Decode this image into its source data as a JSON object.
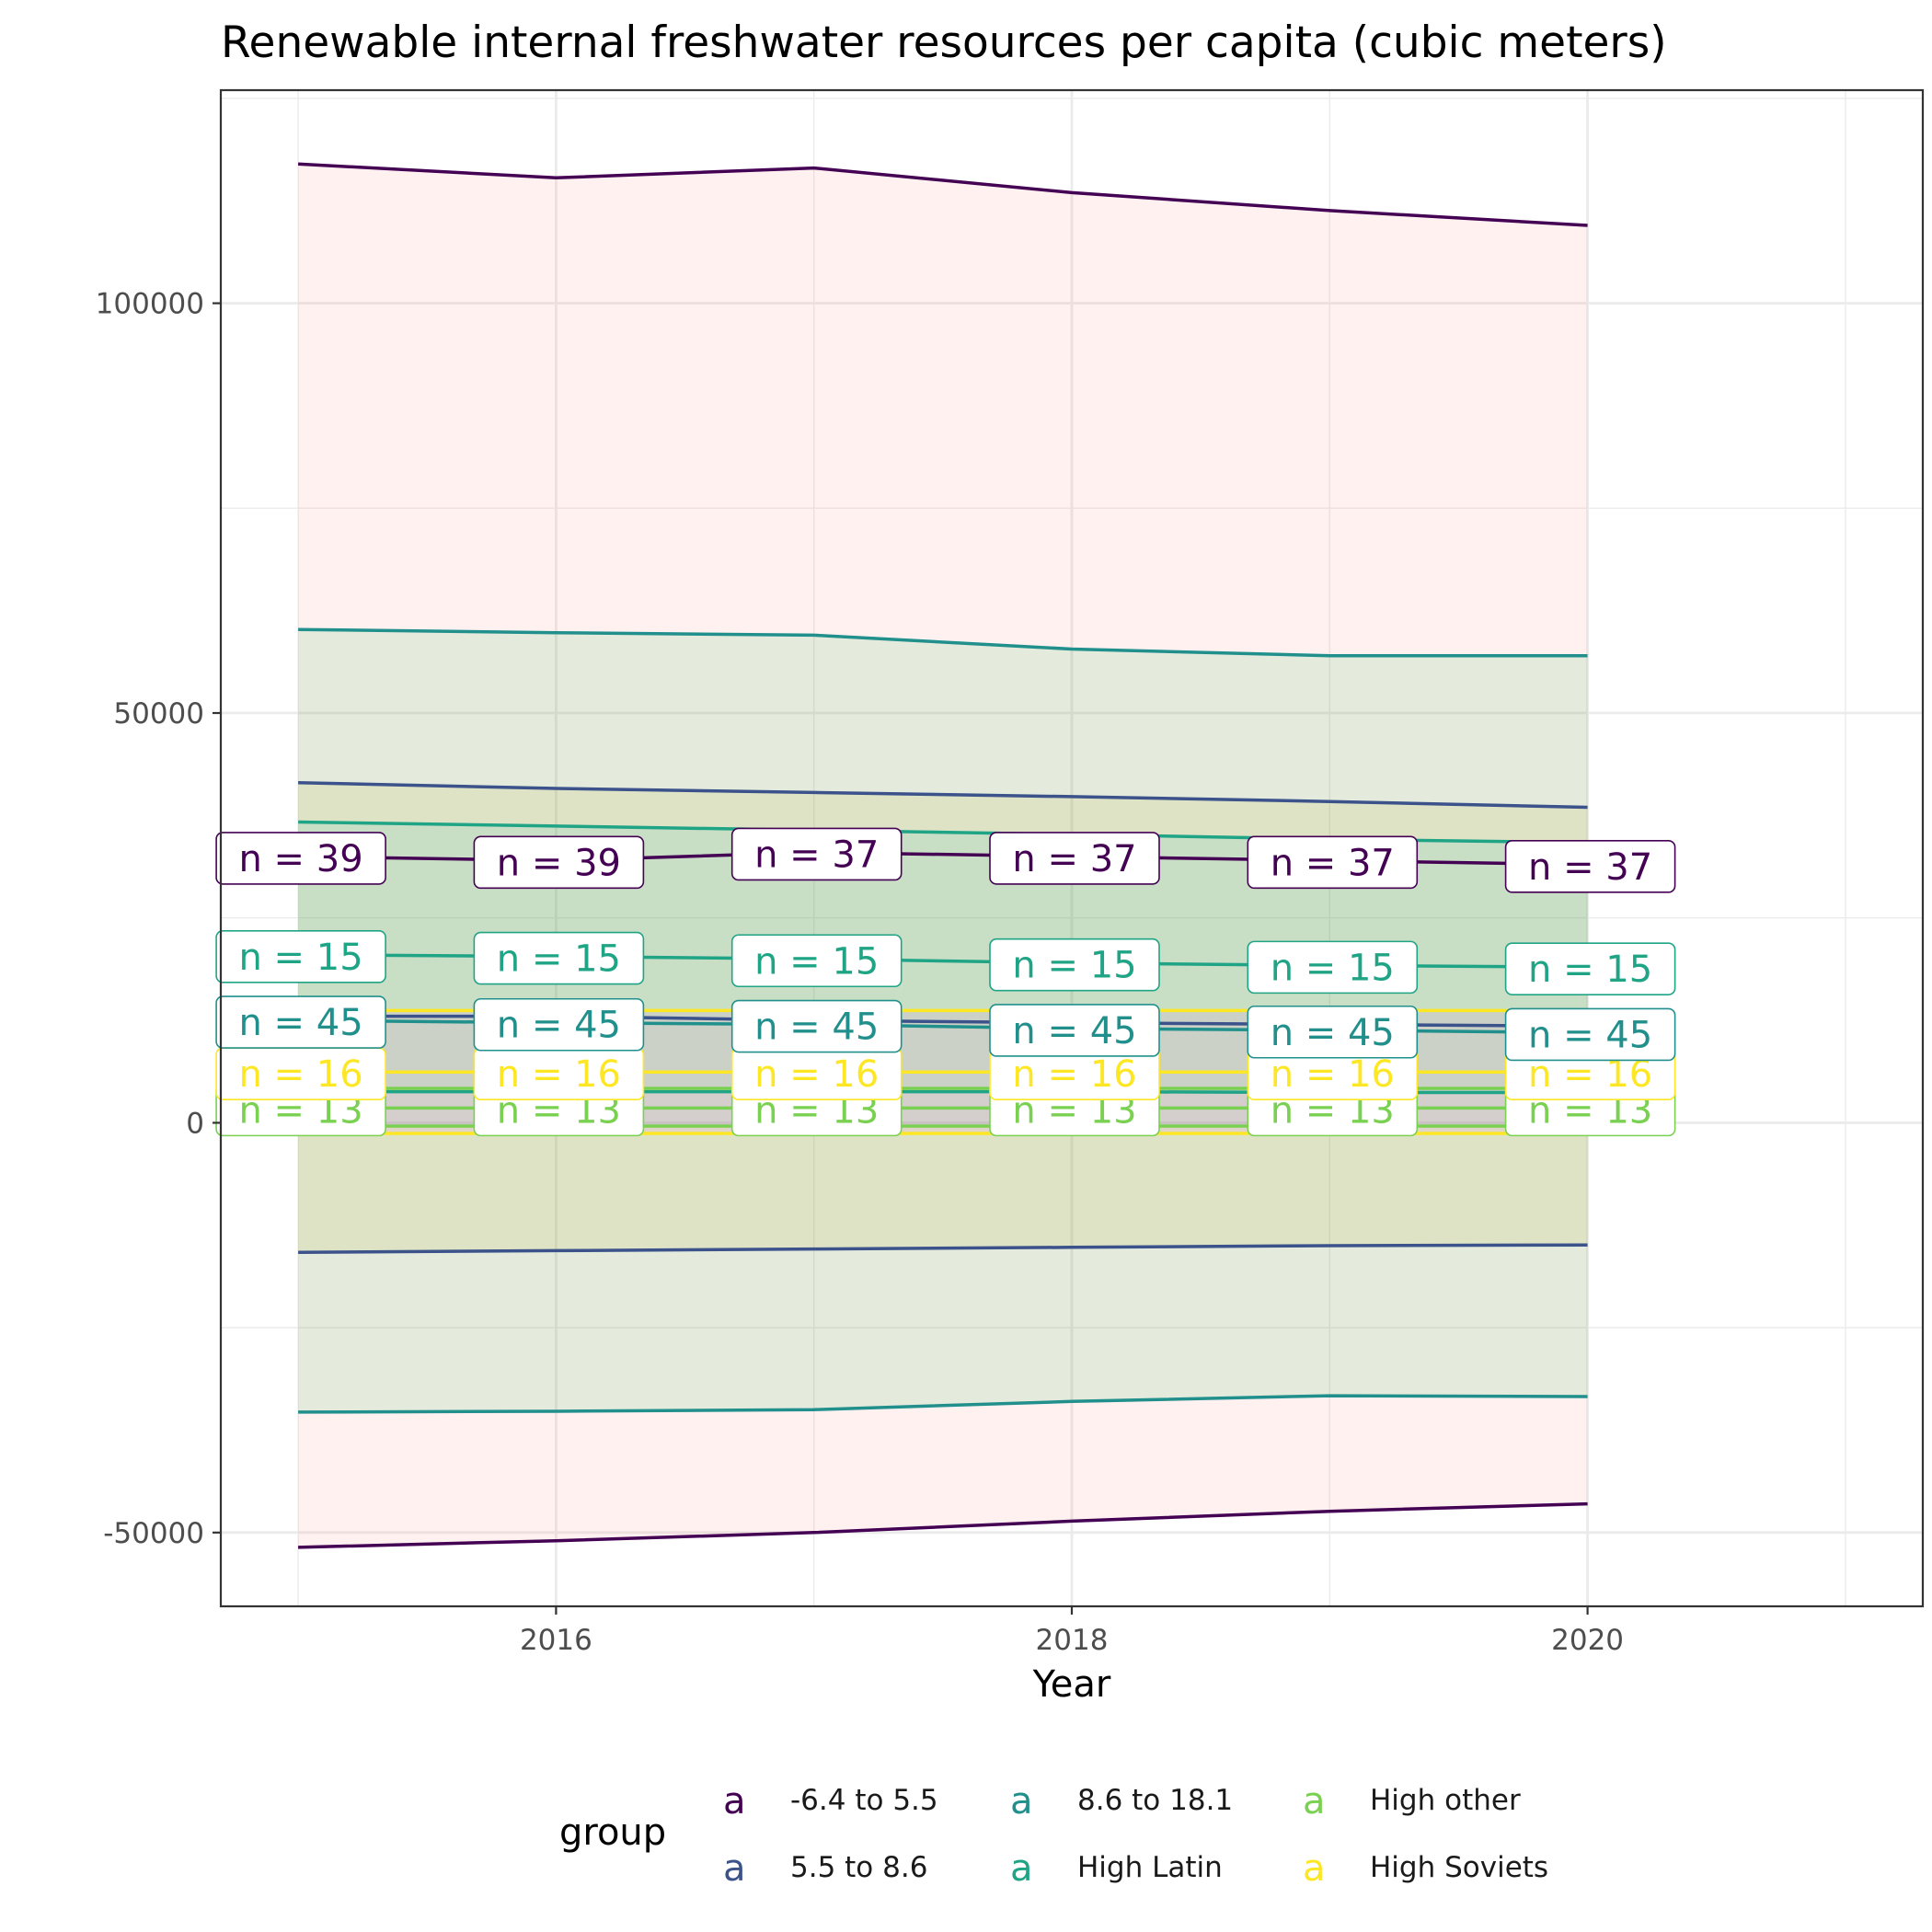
{
  "chart_data": {
    "type": "line",
    "title": "Renewable internal freshwater resources per capita (cubic meters)",
    "xlabel": "Year",
    "ylabel": "",
    "x": [
      2015,
      2016,
      2017,
      2018,
      2019,
      2020
    ],
    "xlim": [
      2014.7,
      2021.3
    ],
    "ylim": [
      -59000,
      126000
    ],
    "x_ticks": [
      2016,
      2018,
      2020
    ],
    "x_tick_labels": [
      "2016",
      "2018",
      "2020"
    ],
    "y_ticks": [
      -50000,
      0,
      50000,
      100000
    ],
    "y_tick_labels": [
      "-50000",
      "0",
      "50000",
      "100000"
    ],
    "grid": true,
    "legend": {
      "title": "group",
      "placement": "bottom",
      "key_glyph": "a",
      "items": [
        "-6.4 to 5.5",
        "5.5 to 8.6",
        "8.6 to 18.1",
        "High Latin",
        "High other",
        "High Soviets"
      ]
    },
    "series": [
      {
        "name": "-6.4 to 5.5",
        "color": "#440154",
        "ribbon_color": "#F8766D",
        "mean": [
          32500,
          32000,
          33000,
          32500,
          32000,
          31500
        ],
        "upper": [
          117000,
          115300,
          116500,
          113500,
          111300,
          109500
        ],
        "lower": [
          -51800,
          -51000,
          -50000,
          -48600,
          -47400,
          -46500
        ],
        "n_labels": [
          "n = 39",
          "n = 39",
          "n = 37",
          "n = 37",
          "n = 37",
          "n = 37"
        ]
      },
      {
        "name": "5.5 to 8.6",
        "color": "#3B528B",
        "ribbon_color": "#B79F00",
        "mean": [
          13000,
          13000,
          12500,
          12200,
          12000,
          11800
        ],
        "upper": [
          41500,
          40800,
          40300,
          39800,
          39200,
          38500
        ],
        "lower": [
          -15800,
          -15600,
          -15400,
          -15200,
          -15000,
          -14900
        ],
        "n_labels": []
      },
      {
        "name": "8.6 to 18.1",
        "color": "#21908C",
        "ribbon_color": "#00BA38",
        "mean": [
          12500,
          12200,
          12000,
          11500,
          11300,
          11000
        ],
        "upper": [
          60200,
          59800,
          59500,
          57800,
          57000,
          57000
        ],
        "lower": [
          -35300,
          -35200,
          -35000,
          -34000,
          -33300,
          -33400
        ],
        "n_labels": [
          "n = 45",
          "n = 45",
          "n = 45",
          "n = 45",
          "n = 45",
          "n = 45"
        ]
      },
      {
        "name": "High Latin",
        "color": "#20A486",
        "ribbon_color": "#00BFC4",
        "mean": [
          20500,
          20300,
          20000,
          19500,
          19200,
          19000
        ],
        "upper": [
          36700,
          36200,
          35700,
          35200,
          34600,
          34200
        ],
        "lower": [
          3800,
          3800,
          3800,
          3800,
          3700,
          3700
        ],
        "n_labels": [
          "n = 15",
          "n = 15",
          "n = 15",
          "n = 15",
          "n = 15",
          "n = 15"
        ]
      },
      {
        "name": "High other",
        "color": "#7AD151",
        "ribbon_color": "#619CFF",
        "mean": [
          1800,
          1800,
          1800,
          1800,
          1800,
          1800
        ],
        "upper": [
          4200,
          4200,
          4200,
          4200,
          4200,
          4200
        ],
        "lower": [
          -400,
          -400,
          -400,
          -400,
          -400,
          -400
        ],
        "n_labels": [
          "n = 13",
          "n = 13",
          "n = 13",
          "n = 13",
          "n = 13",
          "n = 13"
        ]
      },
      {
        "name": "High Soviets",
        "color": "#FDE725",
        "ribbon_color": "#F564E3",
        "mean": [
          6200,
          6200,
          6200,
          6200,
          6200,
          6200
        ],
        "upper": [
          13700,
          13700,
          13700,
          13700,
          13700,
          13700
        ],
        "lower": [
          -1300,
          -1300,
          -1300,
          -1300,
          -1300,
          -1300
        ],
        "n_labels": [
          "n = 16",
          "n = 16",
          "n = 16",
          "n = 16",
          "n = 16",
          "n = 16"
        ]
      }
    ]
  }
}
